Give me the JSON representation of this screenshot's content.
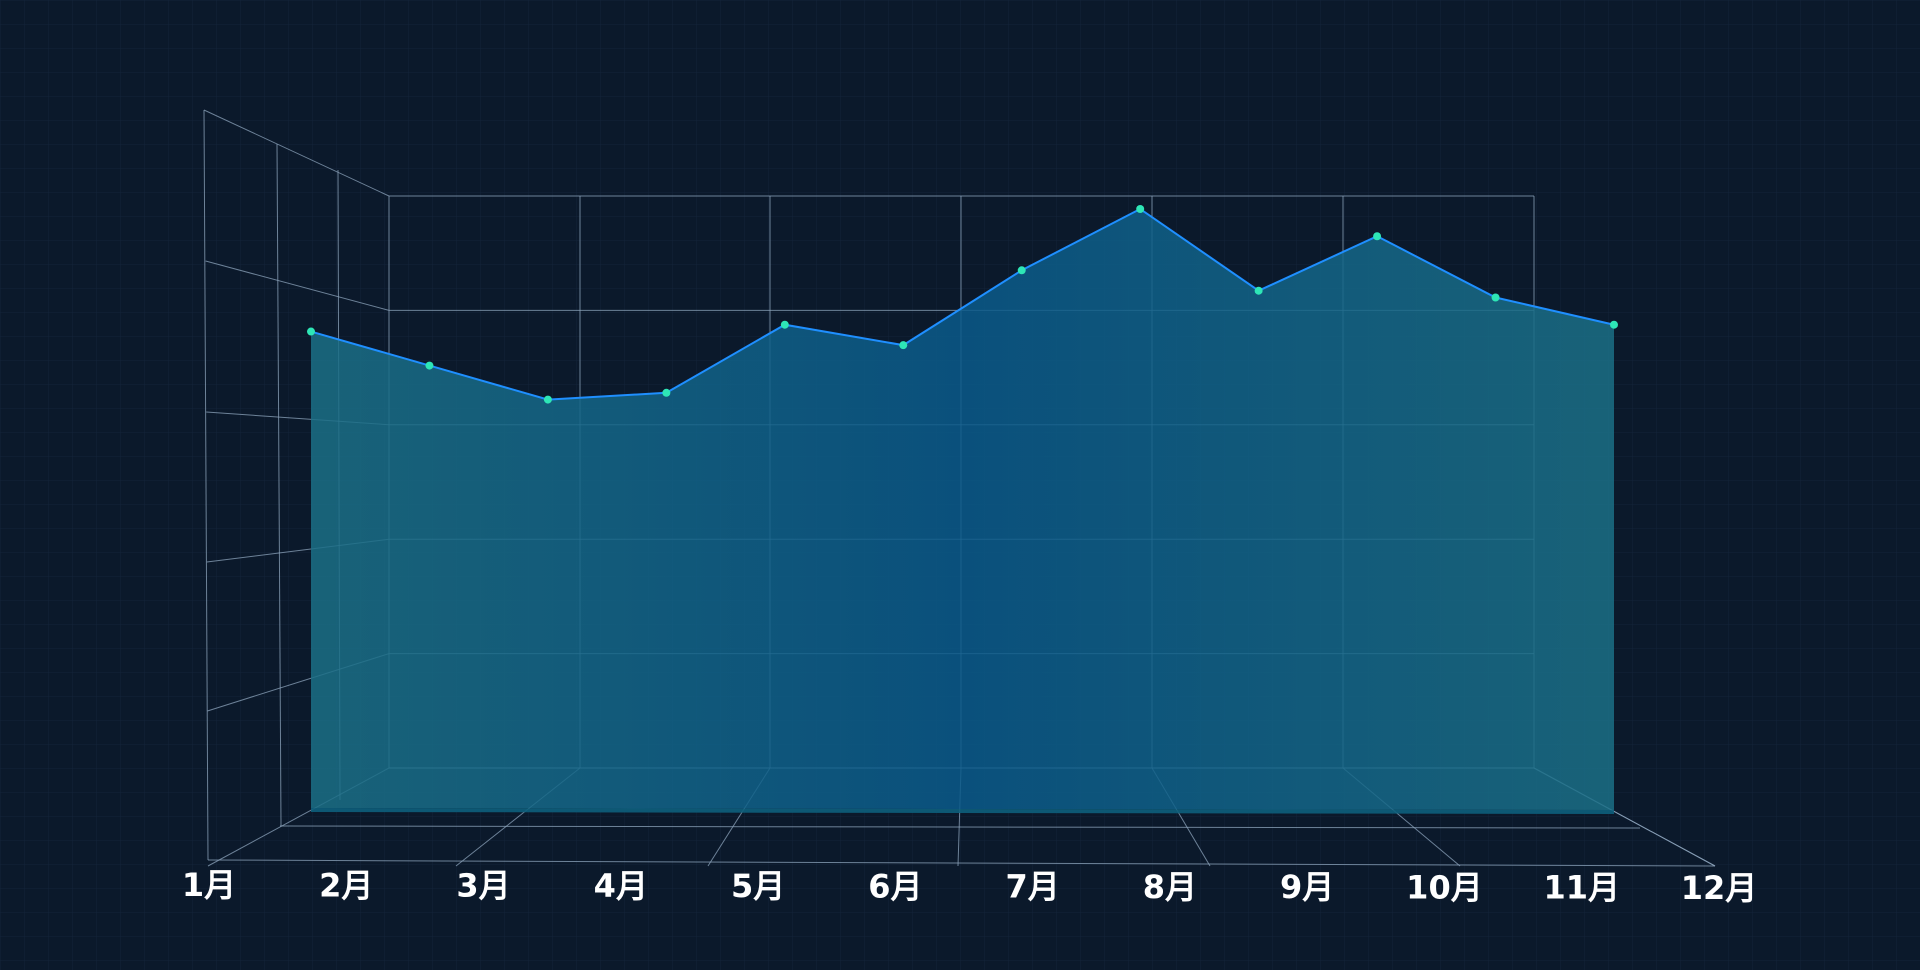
{
  "chart_data": {
    "type": "area",
    "categories": [
      "1月",
      "2月",
      "3月",
      "4月",
      "5月",
      "6月",
      "7月",
      "8月",
      "9月",
      "10月",
      "11月",
      "12月"
    ],
    "series": [
      {
        "values": [
          70,
          65,
          60,
          61,
          71,
          68,
          79,
          88,
          76,
          84,
          75,
          71
        ]
      }
    ],
    "ylim": [
      0,
      150
    ],
    "grid": true,
    "style": "3d-perspective",
    "colors": {
      "background": "#0b192b",
      "line": "#1f8fff",
      "point": "#2ee6b6",
      "fill": "#0d6ea6",
      "grid": "#8fa6bd",
      "tick_label": "#ffffff"
    }
  }
}
